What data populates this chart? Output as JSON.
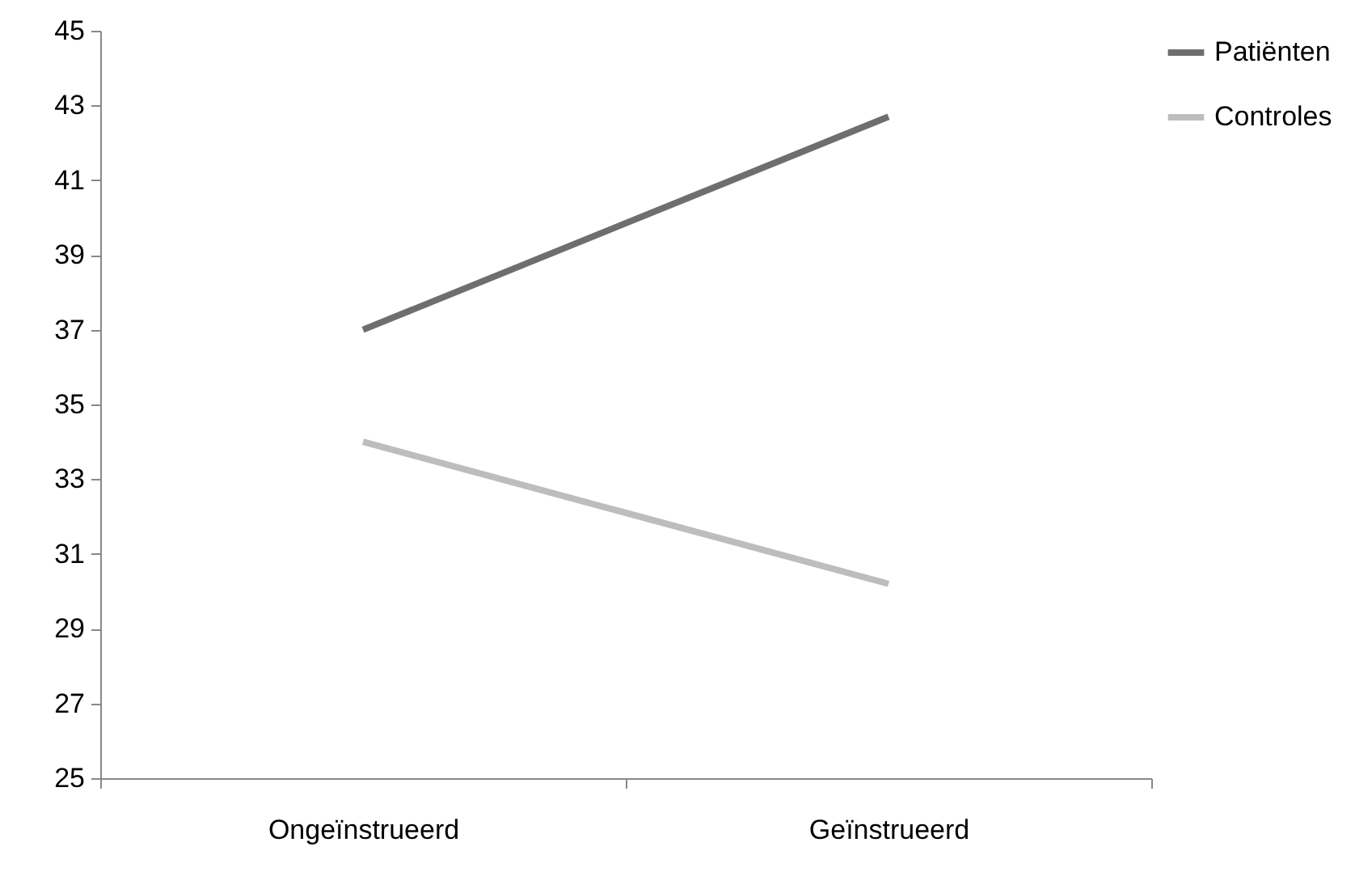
{
  "chart_data": {
    "type": "line",
    "categories": [
      "Ongeïnstrueerd",
      "Geïnstrueerd"
    ],
    "series": [
      {
        "name": "Patiënten",
        "color": "#6e6e6e",
        "values": [
          37,
          42.7
        ]
      },
      {
        "name": "Controles",
        "color": "#bdbdbd",
        "values": [
          34,
          30.2
        ]
      }
    ],
    "ylim": [
      25,
      45
    ],
    "yticks": [
      25,
      27,
      29,
      31,
      33,
      35,
      37,
      39,
      41,
      43,
      45
    ],
    "grid": false,
    "legend": "top right",
    "marker": "none",
    "line_style": "solid"
  }
}
